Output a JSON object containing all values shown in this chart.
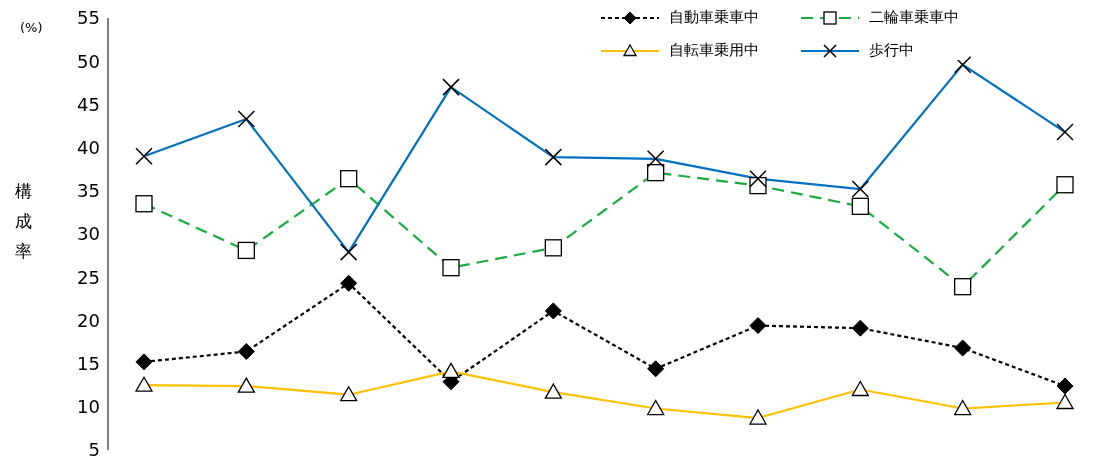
{
  "chart_data": {
    "type": "line",
    "ylabel": "構成率",
    "annotations": [
      "(%)"
    ],
    "categories": [
      null,
      null,
      null,
      null,
      null,
      null,
      null,
      null,
      null,
      null
    ],
    "series": [
      {
        "name": "自動車乗車中",
        "color": "#000000",
        "marker": "diamond",
        "line_style": "dotted",
        "values": [
          15.2,
          16.4,
          24.3,
          12.9,
          21.1,
          14.4,
          19.4,
          19.1,
          16.8,
          12.4
        ]
      },
      {
        "name": "二輪車乗車中",
        "color": "#1aab40",
        "marker": "square",
        "line_style": "dashed",
        "values": [
          33.5,
          28.1,
          36.4,
          26.1,
          28.4,
          37.1,
          35.6,
          33.2,
          23.9,
          35.7
        ]
      },
      {
        "name": "自転車乗用中",
        "color": "#ffc000",
        "marker": "triangle",
        "line_style": "solid",
        "values": [
          12.5,
          12.4,
          11.4,
          14.1,
          11.7,
          9.8,
          8.7,
          12.0,
          9.8,
          10.5
        ]
      },
      {
        "name": "歩行中",
        "color": "#0070c0",
        "marker": "cross",
        "line_style": "solid",
        "values": [
          39.0,
          43.3,
          27.9,
          47.0,
          38.9,
          38.7,
          36.4,
          35.2,
          49.6,
          41.8
        ]
      }
    ],
    "ylim": [
      5,
      55
    ],
    "yticks": [
      5,
      10,
      15,
      20,
      25,
      30,
      35,
      40,
      45,
      50,
      55
    ],
    "grid": false,
    "legend": "top right",
    "tick_labels": "y"
  }
}
